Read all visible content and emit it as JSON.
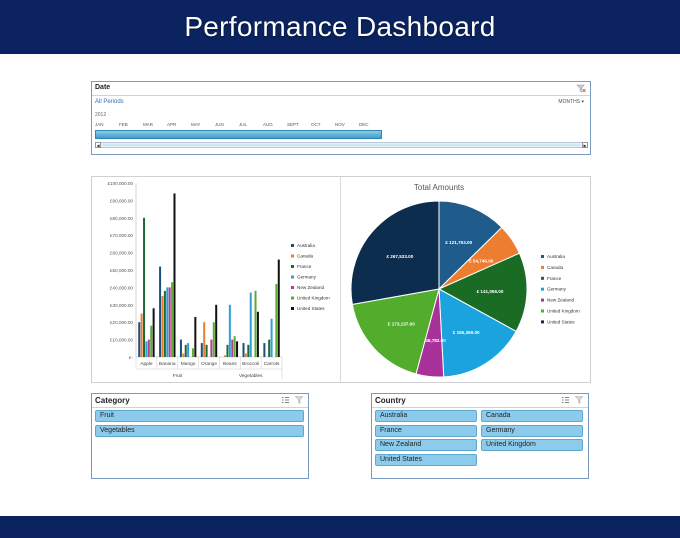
{
  "header": {
    "title": "Performance Dashboard"
  },
  "timeline": {
    "title": "Date",
    "period_label": "All Periods",
    "level_select": "MONTHS",
    "year": "2012",
    "months": [
      "JAN",
      "FEB",
      "MAR",
      "APR",
      "MAY",
      "JUN",
      "JUL",
      "AUG",
      "SEPT",
      "OCT",
      "NOV",
      "DEC"
    ]
  },
  "chart_data": [
    {
      "type": "bar",
      "categories": [
        "Apple",
        "Banana",
        "Mango",
        "Orange",
        "Beans",
        "Broccoli",
        "Carrots"
      ],
      "groups": [
        {
          "label": "Fruit",
          "categories": [
            "Apple",
            "Banana",
            "Mango",
            "Orange"
          ]
        },
        {
          "label": "Vegetables",
          "categories": [
            "Beans",
            "Broccoli",
            "Carrots"
          ]
        }
      ],
      "ylim": [
        0,
        100000
      ],
      "y_ticks": [
        "£-",
        "£10,000.00",
        "£20,000.00",
        "£30,000.00",
        "£40,000.00",
        "£50,000.00",
        "£60,000.00",
        "£70,000.00",
        "£80,000.00",
        "£90,000.00",
        "£100,000.00"
      ],
      "legend_position": "right",
      "series": [
        {
          "name": "Australia",
          "color": "#1f4e79",
          "values": [
            20000,
            52000,
            10000,
            8000,
            0,
            8000,
            8000
          ]
        },
        {
          "name": "Canada",
          "color": "#ed7d31",
          "values": [
            25000,
            35000,
            2000,
            20000,
            1000,
            2000,
            0
          ]
        },
        {
          "name": "France",
          "color": "#1a6b35",
          "values": [
            80000,
            38000,
            7000,
            7000,
            7000,
            7000,
            10000
          ]
        },
        {
          "name": "Germany",
          "color": "#2e9fd6",
          "values": [
            9000,
            40000,
            8000,
            0,
            30000,
            37000,
            22000
          ]
        },
        {
          "name": "New Zealand",
          "color": "#b73b8e",
          "values": [
            10000,
            40000,
            0,
            10000,
            10000,
            0,
            0
          ]
        },
        {
          "name": "United Kingdom",
          "color": "#5bab35",
          "values": [
            18000,
            43000,
            5000,
            20000,
            12000,
            38000,
            42000
          ]
        },
        {
          "name": "United States",
          "color": "#111111",
          "values": [
            28000,
            94000,
            23000,
            30000,
            9000,
            26000,
            56000
          ]
        }
      ]
    },
    {
      "type": "pie",
      "title": "Total Amounts",
      "legend_position": "right",
      "series": [
        {
          "name": "Australia",
          "value": 121753,
          "label": "£ 121,753.00",
          "color": "#1f5c8b"
        },
        {
          "name": "Canada",
          "value": 54745,
          "label": "£ 54,745.00",
          "color": "#ed7d31"
        },
        {
          "name": "France",
          "value": 141056,
          "label": "£ 141,056.00",
          "color": "#1a6b24"
        },
        {
          "name": "Germany",
          "value": 155369,
          "label": "£ 155,369.00",
          "color": "#1aa3dc"
        },
        {
          "name": "New Zealand",
          "value": 48782,
          "label": "£ 48,782.00",
          "color": "#a8319a"
        },
        {
          "name": "United Kingdom",
          "value": 173137,
          "label": "£ 173,137.00",
          "color": "#52ad2c"
        },
        {
          "name": "United States",
          "value": 267533,
          "label": "£ 267,533.00",
          "color": "#0d2d4e"
        }
      ]
    }
  ],
  "category_slicer": {
    "title": "Category",
    "items": [
      "Fruit",
      "Vegetables"
    ]
  },
  "country_slicer": {
    "title": "Country",
    "items": [
      "Australia",
      "Canada",
      "France",
      "Germany",
      "New Zealand",
      "United Kingdom",
      "United States"
    ]
  }
}
